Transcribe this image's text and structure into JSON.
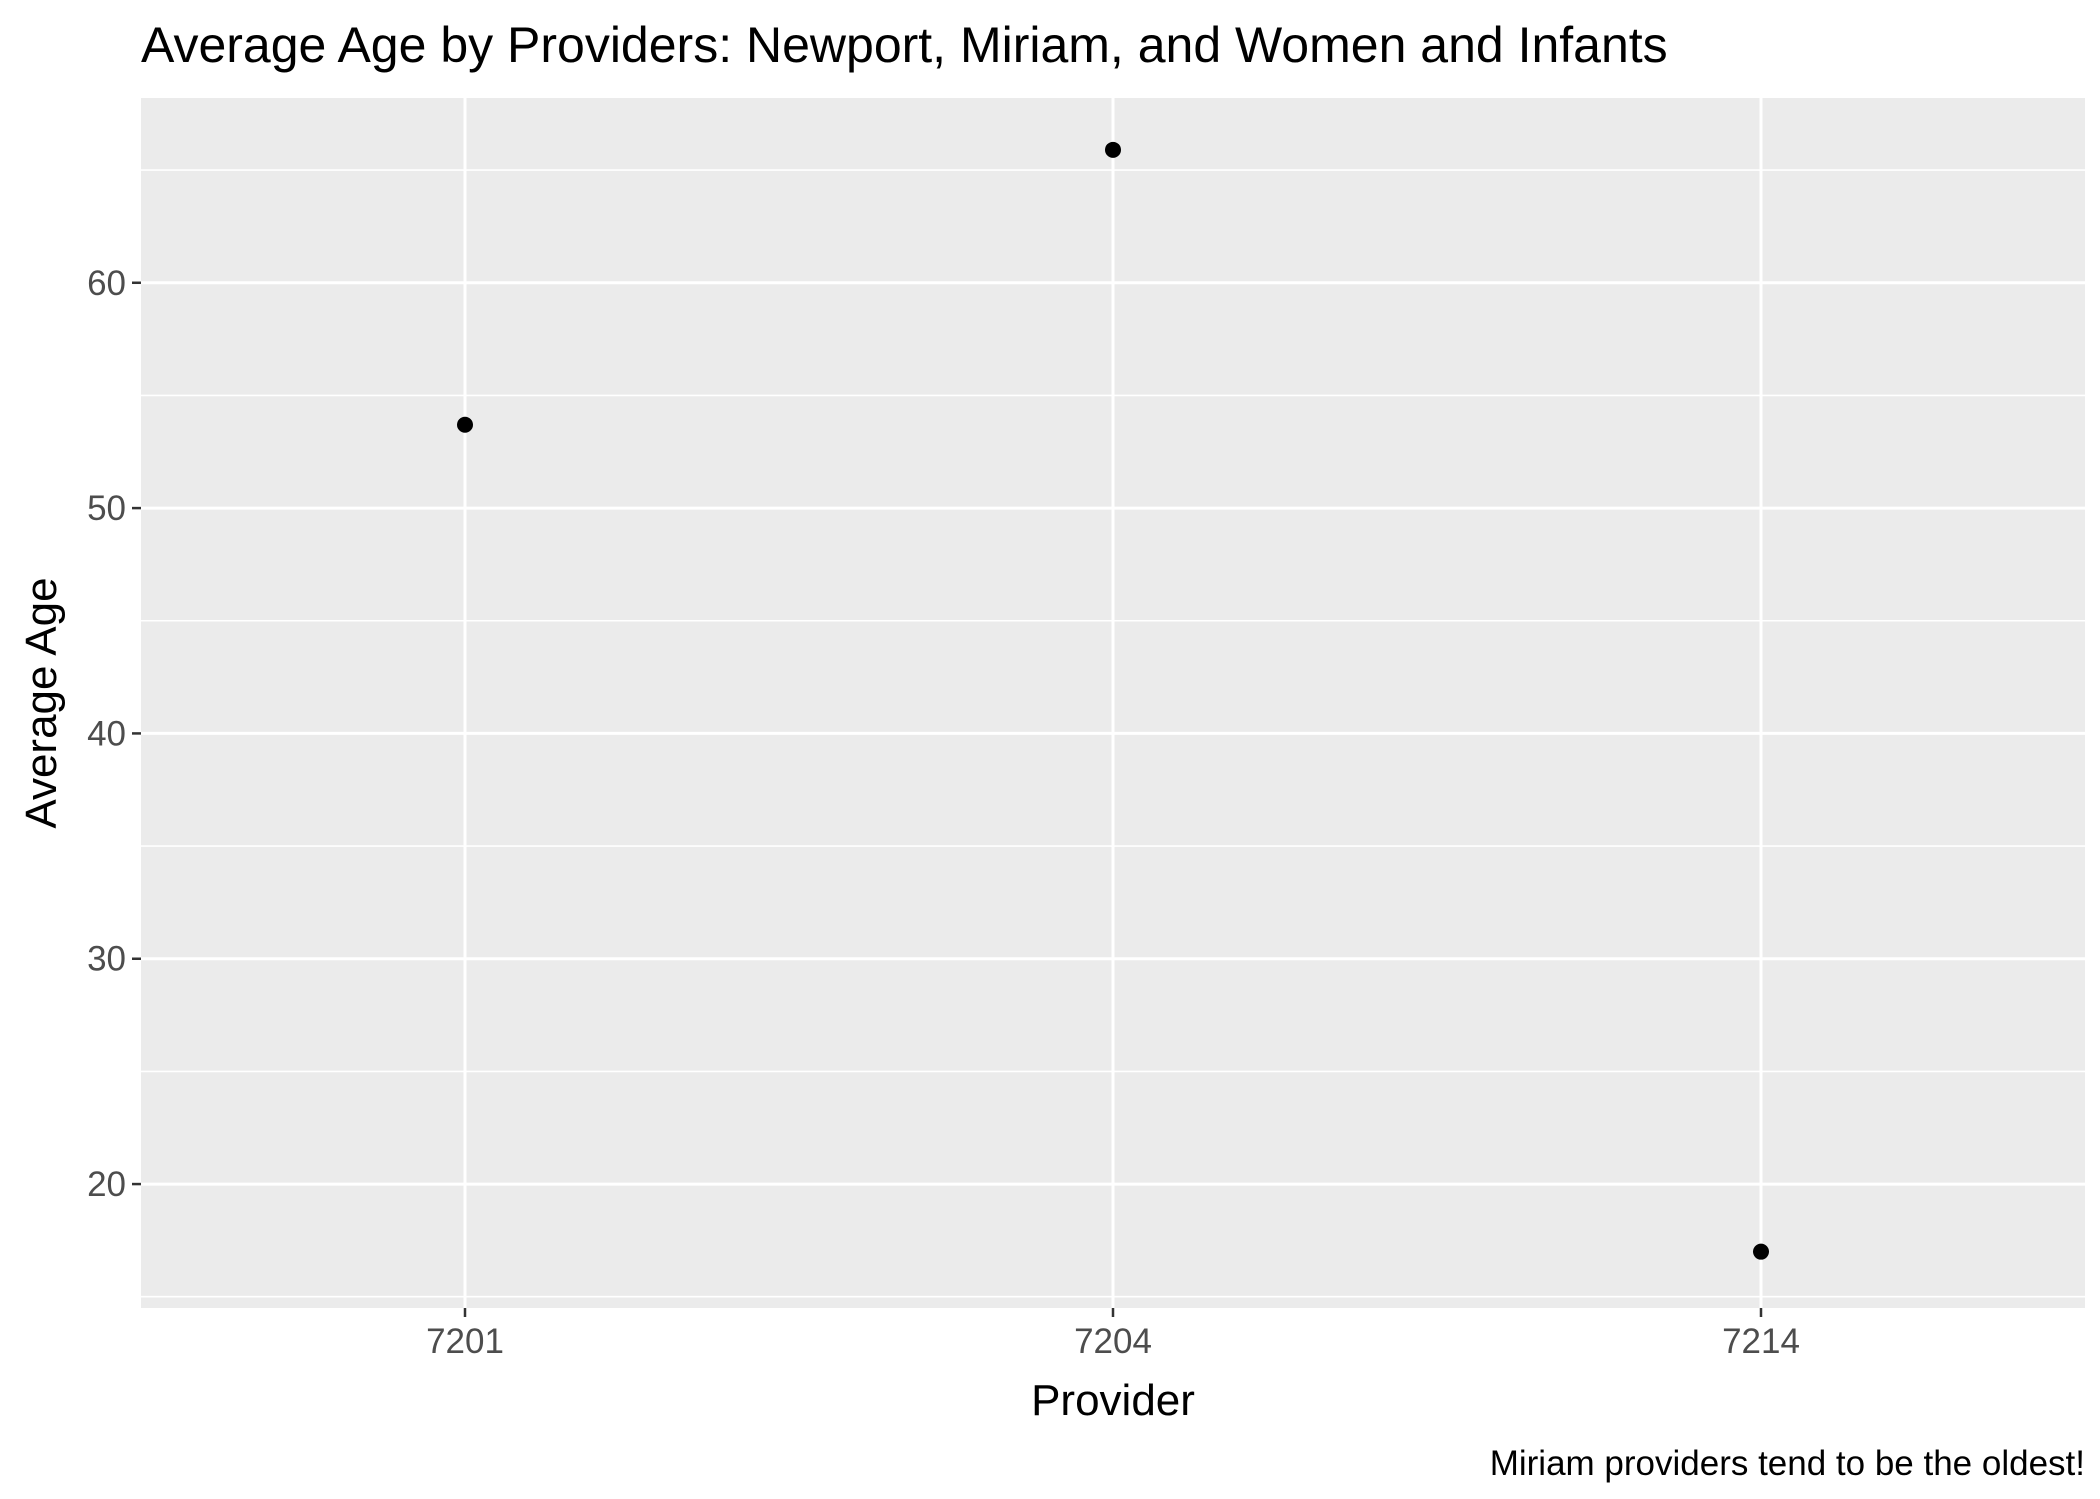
{
  "chart_data": {
    "type": "scatter",
    "title": "Average Age by Providers: Newport, Miriam, and Women and Infants",
    "xlabel": "Provider",
    "ylabel": "Average Age",
    "caption": "Miriam providers tend to be the oldest!",
    "categories": [
      "7201",
      "7204",
      "7214"
    ],
    "values": [
      53.7,
      65.9,
      17.0
    ],
    "ylim": [
      14.5,
      68.2
    ],
    "y_ticks": [
      20,
      30,
      40,
      50,
      60
    ],
    "grid": true,
    "legend": "none",
    "colors": {
      "panel_background": "#ebebeb",
      "grid_line": "#ffffff",
      "point": "#000000",
      "tick_label": "#4d4d4d",
      "tick_mark": "#333333",
      "text": "#000000"
    }
  }
}
